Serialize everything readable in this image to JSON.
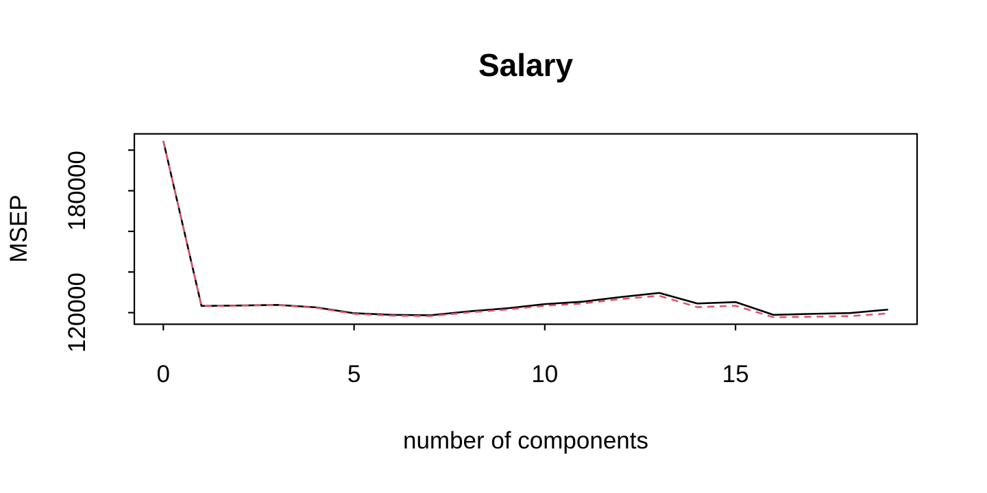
{
  "figure": {
    "background": "#ffffff"
  },
  "chart_data": {
    "type": "line",
    "title": "Salary",
    "xlabel": "number of components",
    "ylabel": "MSEP",
    "x": [
      0,
      1,
      2,
      3,
      4,
      5,
      6,
      7,
      8,
      9,
      10,
      11,
      12,
      13,
      14,
      15,
      16,
      17,
      18,
      19
    ],
    "series": [
      {
        "name": "black-solid",
        "color": "#000000",
        "style": "solid",
        "values": [
          204500,
          123300,
          123500,
          123800,
          122600,
          119700,
          118900,
          118700,
          120600,
          122100,
          124200,
          125400,
          127700,
          129700,
          124500,
          125200,
          118900,
          119400,
          119800,
          121500
        ]
      },
      {
        "name": "red-dashed",
        "color": "#DF536B",
        "style": "dashed",
        "values": [
          204400,
          123200,
          123400,
          123700,
          122400,
          119400,
          118500,
          118300,
          120100,
          121500,
          123400,
          124500,
          126700,
          128300,
          122700,
          123400,
          117700,
          118000,
          118300,
          119600
        ]
      }
    ],
    "xlim": [
      -0.76,
      19.76
    ],
    "ylim": [
      114300,
      208000
    ],
    "x_ticks": [
      0,
      5,
      10,
      15
    ],
    "x_tick_labels": [
      "0",
      "5",
      "10",
      "15"
    ],
    "y_ticks": [
      120000,
      140000,
      160000,
      180000,
      200000
    ],
    "y_tick_labels": [
      "120000",
      "",
      "",
      "180000",
      ""
    ],
    "grid": false,
    "legend_position": "none",
    "axis_color": "#000000"
  }
}
